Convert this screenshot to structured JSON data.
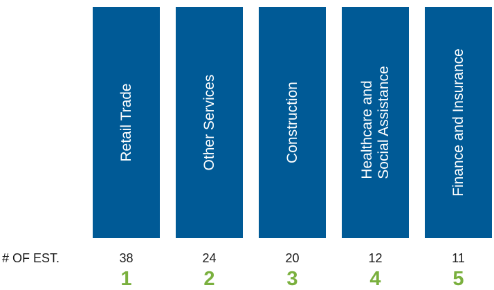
{
  "row_label": "# OF EST.",
  "colors": {
    "bar": "#005a96",
    "rank": "#7ab03e"
  },
  "chart_data": {
    "type": "bar",
    "categories": [
      "Retail Trade",
      "Other Services",
      "Construction",
      "Healthcare and\nSocial Assistance",
      "Finance and Insurance"
    ],
    "values": [
      38,
      24,
      20,
      12,
      11
    ],
    "ranks": [
      "1",
      "2",
      "3",
      "4",
      "5"
    ]
  }
}
